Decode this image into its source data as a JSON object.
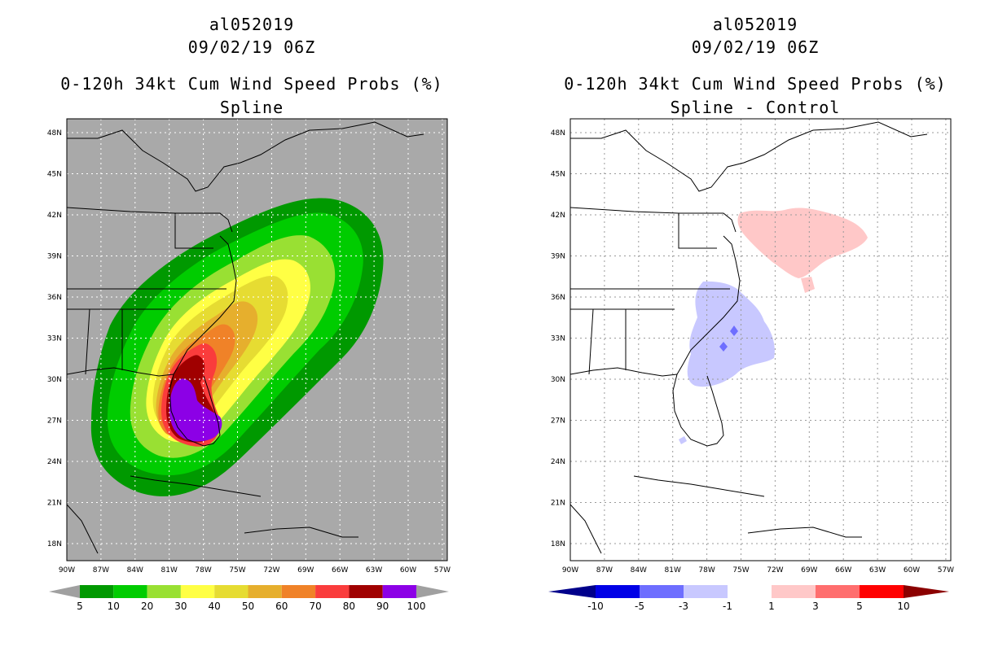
{
  "left_panel": {
    "storm_id": "al052019",
    "datetime": "09/02/19 06Z",
    "product": "0-120h 34kt Cum Wind Speed Probs (%)",
    "subtitle": "Spline",
    "background_color": "#a9a9a9"
  },
  "right_panel": {
    "storm_id": "al052019",
    "datetime": "09/02/19 06Z",
    "product": "0-120h 34kt Cum Wind Speed Probs (%)",
    "subtitle": "Spline - Control",
    "background_color": "#ffffff"
  },
  "lat_labels": [
    "48N",
    "45N",
    "42N",
    "39N",
    "36N",
    "33N",
    "30N",
    "27N",
    "24N",
    "21N",
    "18N"
  ],
  "lon_labels": [
    "90W",
    "87W",
    "84W",
    "81W",
    "78W",
    "75W",
    "72W",
    "69W",
    "66W",
    "63W",
    "60W",
    "57W"
  ],
  "left_colorbar": {
    "labels": [
      "5",
      "10",
      "20",
      "30",
      "40",
      "50",
      "60",
      "70",
      "80",
      "90",
      "100"
    ],
    "colors": [
      "#009900",
      "#00cc00",
      "#99e033",
      "#ffff44",
      "#e6dc32",
      "#e6af2d",
      "#f08228",
      "#fa3c3c",
      "#a00000",
      "#8c00e6"
    ],
    "end_color": "#a0a0a0"
  },
  "right_colorbar": {
    "labels": [
      "-10",
      "-5",
      "-3",
      "-1",
      "1",
      "3",
      "5",
      "10"
    ],
    "colors": [
      "#0000e6",
      "#6e6eff",
      "#c8c8ff",
      "#ffffff",
      "#ffc8c8",
      "#ff6e6e",
      "#ff0000"
    ],
    "low_end_color": "#00008b",
    "high_end_color": "#8b0000"
  }
}
